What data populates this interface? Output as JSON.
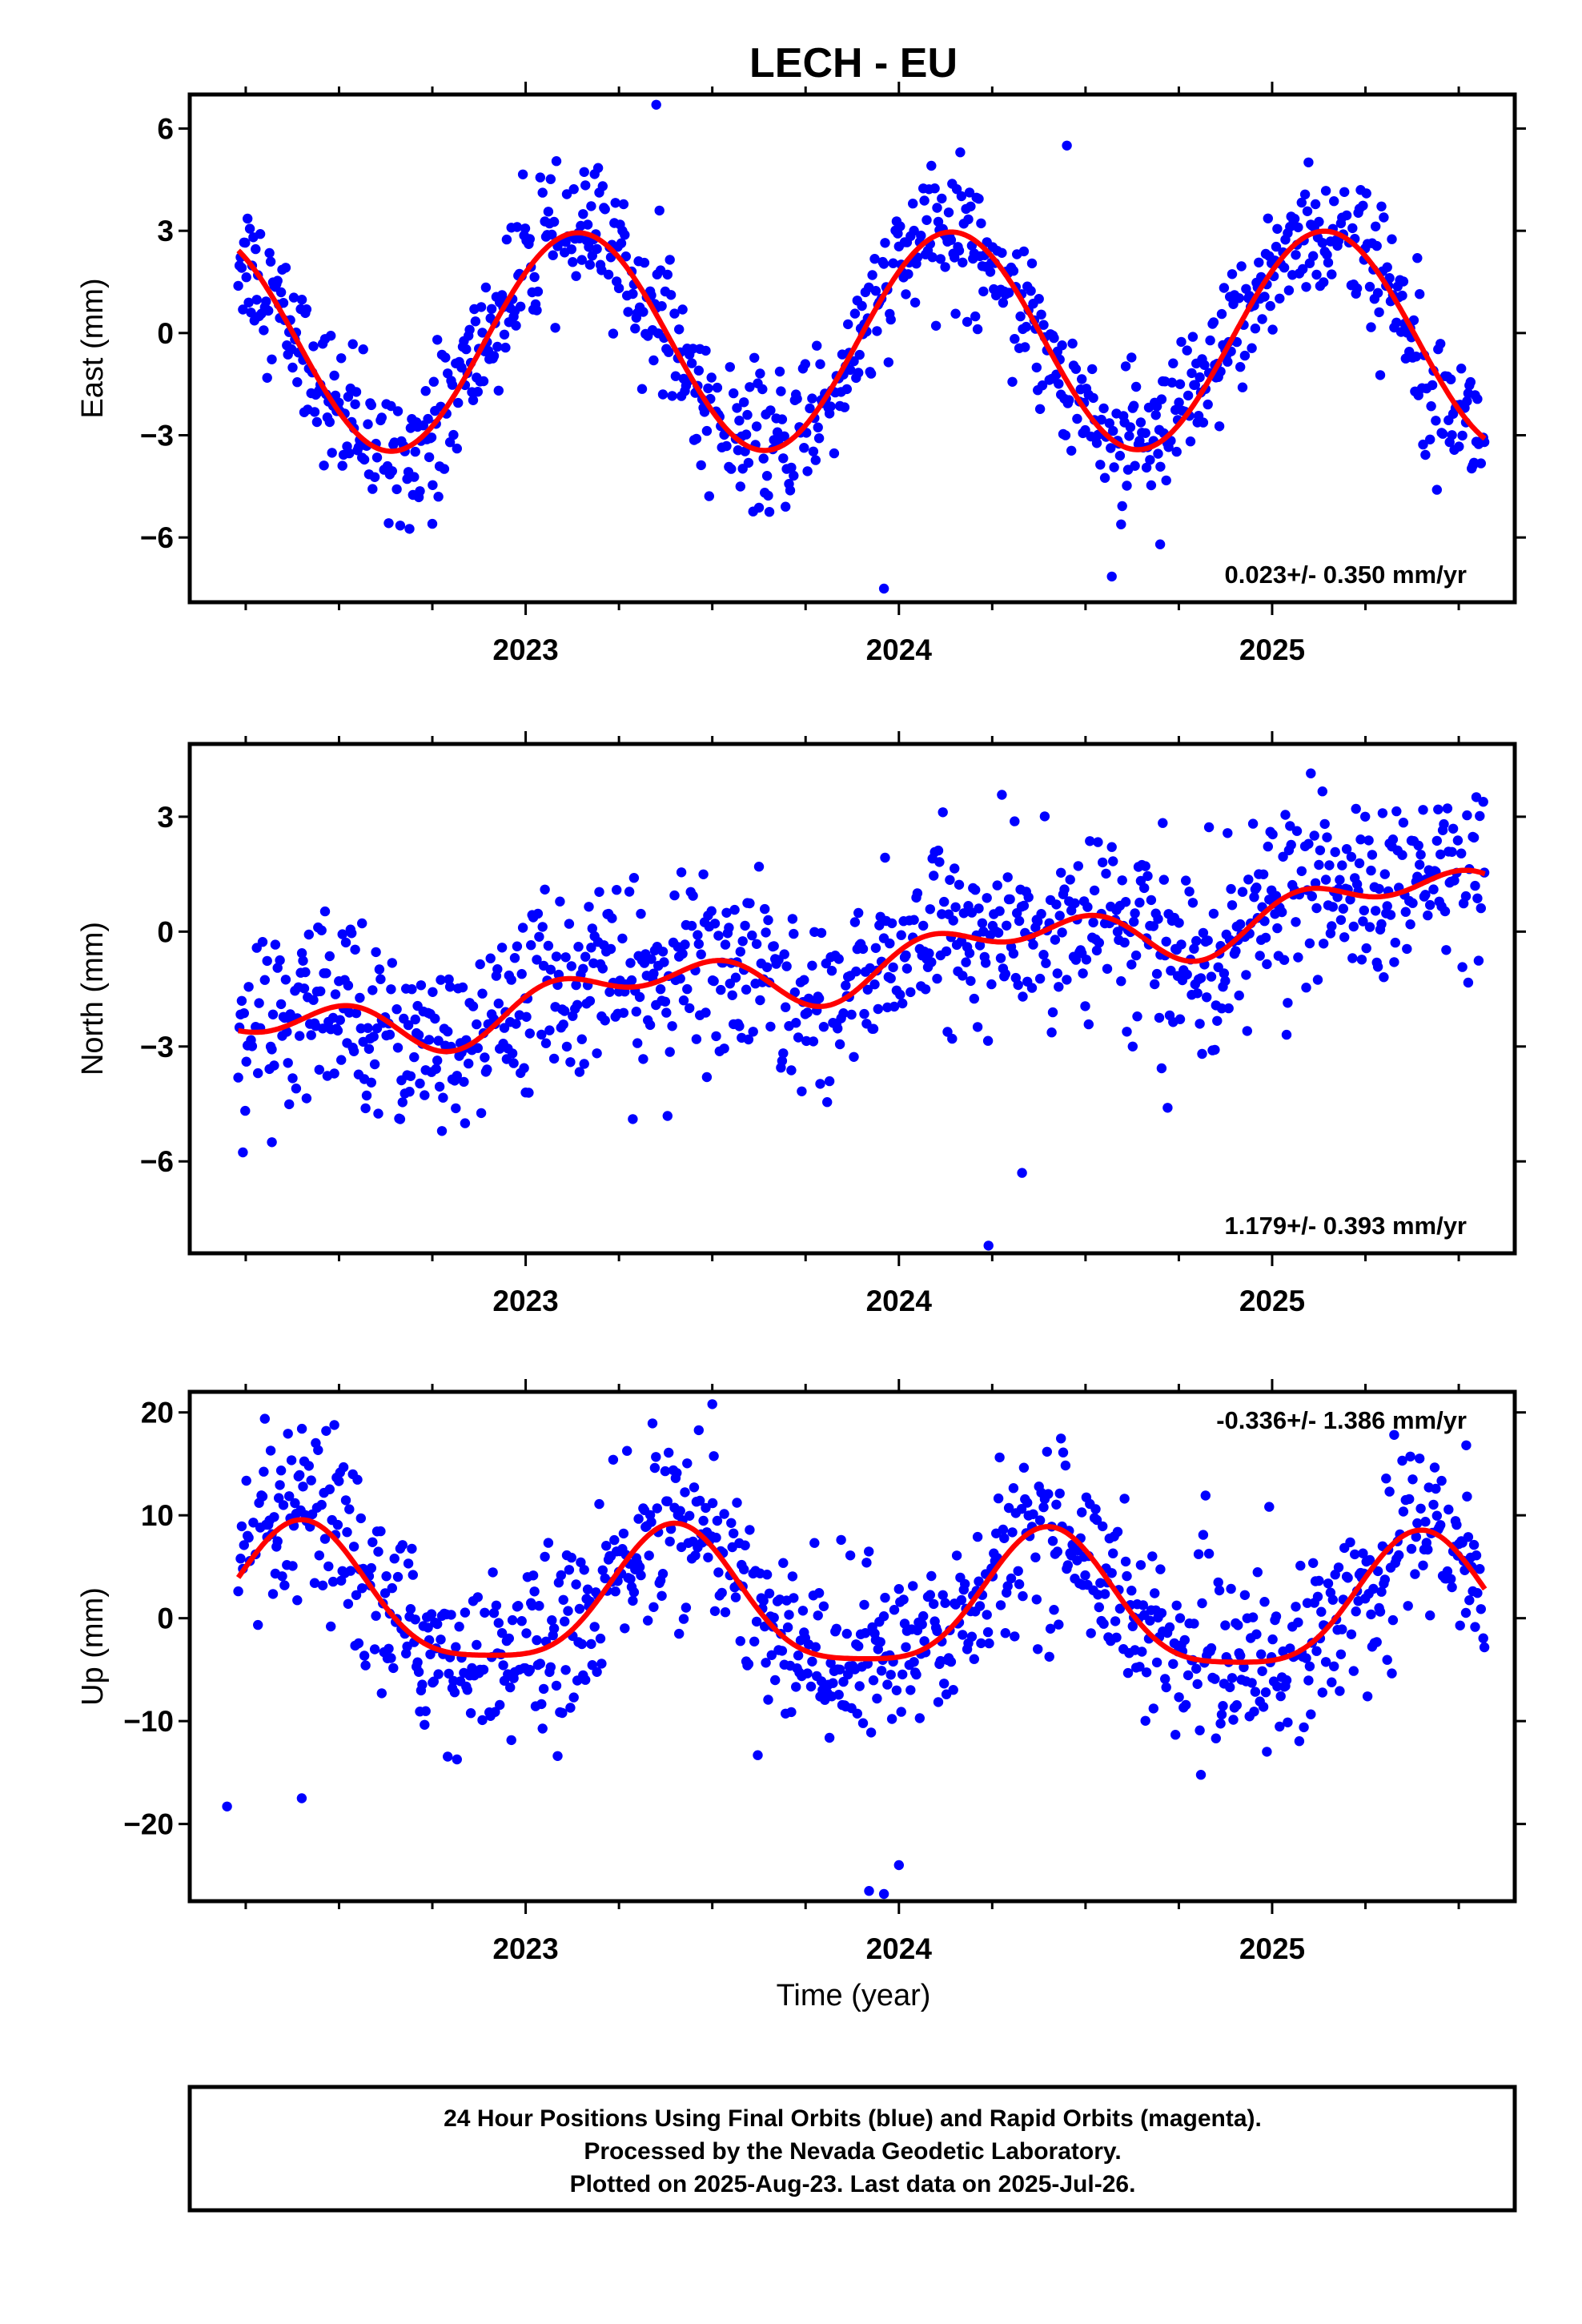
{
  "title": "LECH - EU",
  "colors": {
    "points": "#0000ff",
    "fit": "#ff0000",
    "axis": "#000000"
  },
  "x_tick_labels": [
    "2023",
    "2024",
    "2025"
  ],
  "xlabel": "Time (year)",
  "footer": {
    "line1": "24 Hour Positions Using Final Orbits (blue) and Rapid Orbits (magenta).",
    "line2": "Processed by the Nevada Geodetic Laboratory.",
    "line3": "Plotted on 2025-Aug-23. Last data on 2025-Jul-26."
  },
  "chart_data": [
    {
      "type": "scatter",
      "ylabel": "East (mm)",
      "rate_label": "0.023+/- 0.350 mm/yr",
      "rate_position": "bottom-right",
      "xlim": [
        2022.1,
        2025.65
      ],
      "ylim": [
        -7.9,
        7.0
      ],
      "yticks": [
        -6,
        -3,
        0,
        3,
        6
      ],
      "ytick_labels": [
        "−6",
        "−3",
        "0",
        "3",
        "6"
      ],
      "x_start": 2022.23,
      "x_end": 2025.57,
      "series": [
        {
          "fit": {
            "offset": -0.25,
            "rate": 0.023,
            "amp1": 3.2,
            "phase1": 0.14,
            "amp2": 0.0,
            "phase2": 0.0
          },
          "scatter": 1.0
        }
      ],
      "outliers": [
        [
          2023.96,
          -7.5
        ],
        [
          2022.75,
          -5.6
        ],
        [
          2024.7,
          -6.2
        ],
        [
          2024.45,
          5.5
        ],
        [
          2023.35,
          6.7
        ]
      ]
    },
    {
      "type": "scatter",
      "ylabel": "North (mm)",
      "rate_label": "1.179+/- 0.393 mm/yr",
      "rate_position": "bottom-right",
      "xlim": [
        2022.1,
        2025.65
      ],
      "ylim": [
        -8.4,
        4.9
      ],
      "yticks": [
        -6,
        -3,
        0,
        3
      ],
      "ytick_labels": [
        "−6",
        "−3",
        "0",
        "3"
      ],
      "x_start": 2022.23,
      "x_end": 2025.57,
      "series": [
        {
          "fit": {
            "offset": -1.3,
            "rate": 1.179,
            "amp1": 0.55,
            "phase1": 0.3,
            "amp2": 0.45,
            "phase2": 0.05
          },
          "scatter": 1.15
        }
      ],
      "outliers": [
        [
          2024.24,
          -8.2
        ],
        [
          2024.33,
          -6.3
        ],
        [
          2024.72,
          -4.6
        ],
        [
          2023.0,
          -4.2
        ],
        [
          2022.32,
          -5.5
        ]
      ]
    },
    {
      "type": "scatter",
      "ylabel": "Up (mm)",
      "rate_label": "-0.336+/- 1.386 mm/yr",
      "rate_position": "top-right",
      "xlim": [
        2022.1,
        2025.65
      ],
      "ylim": [
        -27.5,
        22.0
      ],
      "yticks": [
        -20,
        -10,
        0,
        10,
        20
      ],
      "ytick_labels": [
        "−20",
        "−10",
        "0",
        "10",
        "20"
      ],
      "x_start": 2022.23,
      "x_end": 2025.57,
      "series": [
        {
          "fit": {
            "offset": 1.2,
            "rate": -0.336,
            "amp1": 6.5,
            "phase1": 0.4,
            "amp2": 1.5,
            "phase2": 0.4
          },
          "scatter": 4.2
        }
      ],
      "outliers": [
        [
          2023.92,
          -26.5
        ],
        [
          2023.96,
          -26.8
        ],
        [
          2024.0,
          -24.0
        ],
        [
          2022.2,
          -18.3
        ],
        [
          2022.4,
          -17.5
        ],
        [
          2023.5,
          20.8
        ],
        [
          2025.52,
          16.8
        ]
      ]
    }
  ]
}
